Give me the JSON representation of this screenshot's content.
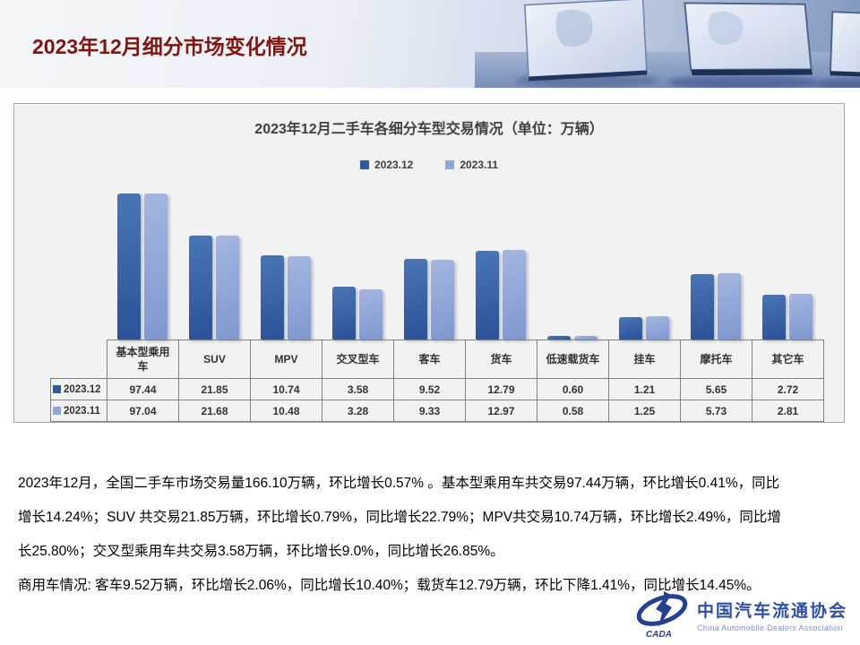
{
  "slide": {
    "title": "2023年12月细分市场变化情况"
  },
  "chart_data": {
    "type": "bar",
    "title": "2023年12月二手车各细分车型交易情况（单位：万辆）",
    "unit": "万辆",
    "categories": [
      "基本型乘用车",
      "SUV",
      "MPV",
      "交叉型车",
      "客车",
      "货车",
      "低速载货车",
      "挂车",
      "摩托车",
      "其它车"
    ],
    "series": [
      {
        "name": "2023.12",
        "color": "#2e5c9e",
        "color_top": "#4a76b4",
        "color_bottom": "#2a5295",
        "values": [
          97.44,
          21.85,
          10.74,
          3.58,
          9.52,
          12.79,
          0.6,
          1.21,
          5.65,
          2.72
        ]
      },
      {
        "name": "2023.11",
        "color": "#8fa6d9",
        "color_top": "#a4b6e0",
        "color_bottom": "#8098d0",
        "values": [
          97.04,
          21.68,
          10.48,
          3.28,
          9.33,
          12.97,
          0.58,
          1.25,
          5.73,
          2.81
        ]
      }
    ],
    "scale": "log",
    "value_axis_visible": false,
    "grid": false,
    "legend_position": "top",
    "data_table_shown": true
  },
  "body_text": {
    "lines": [
      "2023年12月，全国二手车市场交易量166.10万辆，环比增长0.57% 。基本型乘用车共交易97.44万辆，环比增长0.41%，同比",
      "增长14.24%；SUV 共交易21.85万辆，环比增长0.79%，同比增长22.79%；MPV共交易10.74万辆，环比增长2.49%，同比增",
      "长25.80%；交叉型乘用车共交易3.58万辆，环比增长9.0%，同比增长26.85%。",
      "商用车情况: 客车9.52万辆，环比增长2.06%，同比增长10.40%；载货车12.79万辆，环比下降1.41%，同比增长14.45%。"
    ]
  },
  "logo": {
    "zh": "中国汽车流通协会",
    "en": "China Automobile Dealers Association",
    "acronym": "CADA"
  },
  "colors": {
    "title_red": "#7f1610",
    "chart_text_gray": "#404040",
    "panel_bg": "#f2f2f2",
    "series_2023_12": "#2e5c9e",
    "series_2023_11": "#8fa6d9",
    "logo_blue": "#24418f"
  }
}
